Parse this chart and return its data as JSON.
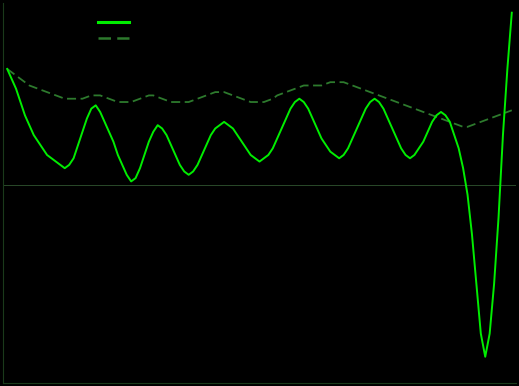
{
  "background_color": "#000000",
  "spine_color": "#1a3a1a",
  "zero_line_color": "#2a4a2a",
  "goods_color": "#00ee00",
  "services_color": "#2d7a2d",
  "goods_linewidth": 1.4,
  "services_linewidth": 1.3,
  "legend_goods_label": "",
  "legend_services_label": "",
  "ylim": [
    -6.0,
    5.5
  ],
  "figsize": [
    5.19,
    3.86
  ],
  "dpi": 100,
  "goods_data": [
    3.5,
    3.2,
    2.9,
    2.5,
    2.1,
    1.8,
    1.5,
    1.3,
    1.1,
    0.9,
    0.8,
    0.7,
    0.6,
    0.5,
    0.6,
    0.8,
    1.2,
    1.6,
    2.0,
    2.3,
    2.4,
    2.2,
    1.9,
    1.6,
    1.3,
    0.9,
    0.6,
    0.3,
    0.1,
    0.2,
    0.5,
    0.9,
    1.3,
    1.6,
    1.8,
    1.7,
    1.5,
    1.2,
    0.9,
    0.6,
    0.4,
    0.3,
    0.4,
    0.6,
    0.9,
    1.2,
    1.5,
    1.7,
    1.8,
    1.9,
    1.8,
    1.7,
    1.5,
    1.3,
    1.1,
    0.9,
    0.8,
    0.7,
    0.8,
    0.9,
    1.1,
    1.4,
    1.7,
    2.0,
    2.3,
    2.5,
    2.6,
    2.5,
    2.3,
    2.0,
    1.7,
    1.4,
    1.2,
    1.0,
    0.9,
    0.8,
    0.9,
    1.1,
    1.4,
    1.7,
    2.0,
    2.3,
    2.5,
    2.6,
    2.5,
    2.3,
    2.0,
    1.7,
    1.4,
    1.1,
    0.9,
    0.8,
    0.9,
    1.1,
    1.3,
    1.6,
    1.9,
    2.1,
    2.2,
    2.1,
    1.9,
    1.5,
    1.1,
    0.5,
    -0.3,
    -1.5,
    -3.0,
    -4.5,
    -5.2,
    -4.5,
    -3.0,
    -1.0,
    1.5,
    3.5,
    5.2
  ],
  "services_data": [
    3.5,
    3.4,
    3.3,
    3.2,
    3.1,
    3.0,
    2.95,
    2.9,
    2.85,
    2.8,
    2.75,
    2.7,
    2.65,
    2.6,
    2.6,
    2.6,
    2.6,
    2.6,
    2.65,
    2.7,
    2.7,
    2.7,
    2.65,
    2.6,
    2.55,
    2.5,
    2.5,
    2.5,
    2.5,
    2.55,
    2.6,
    2.65,
    2.7,
    2.7,
    2.65,
    2.6,
    2.55,
    2.5,
    2.5,
    2.5,
    2.5,
    2.5,
    2.55,
    2.6,
    2.65,
    2.7,
    2.75,
    2.8,
    2.8,
    2.8,
    2.75,
    2.7,
    2.65,
    2.6,
    2.55,
    2.5,
    2.5,
    2.5,
    2.5,
    2.55,
    2.6,
    2.7,
    2.75,
    2.8,
    2.85,
    2.9,
    2.95,
    3.0,
    3.0,
    3.0,
    3.0,
    3.0,
    3.05,
    3.1,
    3.1,
    3.1,
    3.1,
    3.05,
    3.0,
    2.95,
    2.9,
    2.85,
    2.8,
    2.75,
    2.7,
    2.65,
    2.6,
    2.55,
    2.5,
    2.45,
    2.4,
    2.35,
    2.3,
    2.25,
    2.2,
    2.15,
    2.1,
    2.05,
    2.0,
    1.95,
    1.9,
    1.85,
    1.8,
    1.75,
    1.75,
    1.8,
    1.85,
    1.9,
    1.95,
    2.0,
    2.05,
    2.1,
    2.15,
    2.2,
    2.25
  ]
}
